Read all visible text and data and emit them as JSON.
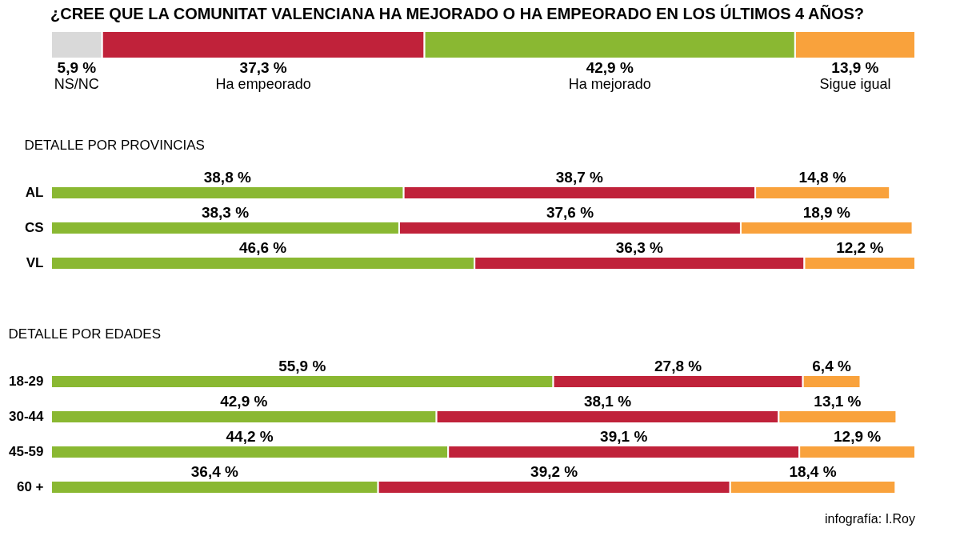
{
  "chart_data": [
    {
      "type": "bar",
      "orientation": "horizontal",
      "stacked": true,
      "title": "¿CREE QUE LA COMUNITAT VALENCIANA HA MEJORADO O HA EMPEORADO EN LOS ÚLTIMOS 4 AÑOS?",
      "categories": [
        null
      ],
      "series": [
        {
          "name": "NS/NC",
          "color": "#d9d9d9",
          "values": [
            5.9
          ],
          "value_labels": [
            "5,9 %"
          ]
        },
        {
          "name": "Ha empeorado",
          "color": "#c0223a",
          "values": [
            37.3
          ],
          "value_labels": [
            "37,3 %"
          ]
        },
        {
          "name": "Ha mejorado",
          "color": "#8ab832",
          "values": [
            42.9
          ],
          "value_labels": [
            "42,9 %"
          ]
        },
        {
          "name": "Sigue igual",
          "color": "#f9a23c",
          "values": [
            13.9
          ],
          "value_labels": [
            "13,9 %"
          ]
        }
      ]
    },
    {
      "type": "bar",
      "orientation": "horizontal",
      "stacked": true,
      "title": "DETALLE POR PROVINCIAS",
      "categories": [
        "AL",
        "CS",
        "VL"
      ],
      "tick_labels": "y",
      "series": [
        {
          "color": "#8ab832",
          "values": [
            38.8,
            38.3,
            46.6
          ],
          "value_labels": [
            "38,8 %",
            "38,3 %",
            "46,6 %"
          ]
        },
        {
          "color": "#c0223a",
          "values": [
            38.7,
            37.6,
            36.3
          ],
          "value_labels": [
            "38,7 %",
            "37,6 %",
            "36,3 %"
          ]
        },
        {
          "color": "#f9a23c",
          "values": [
            14.8,
            18.9,
            12.2
          ],
          "value_labels": [
            "14,8 %",
            "18,9 %",
            "12,2 %"
          ]
        }
      ]
    },
    {
      "type": "bar",
      "orientation": "horizontal",
      "stacked": true,
      "title": "DETALLE POR EDADES",
      "categories": [
        "18-29",
        "30-44",
        "45-59",
        "60 +"
      ],
      "tick_labels": "y",
      "annotations": [
        "infografía: I.Roy"
      ],
      "series": [
        {
          "color": "#8ab832",
          "values": [
            55.9,
            42.9,
            44.2,
            36.4
          ],
          "value_labels": [
            "55,9 %",
            "42,9 %",
            "44,2 %",
            "36,4 %"
          ]
        },
        {
          "color": "#c0223a",
          "values": [
            27.8,
            38.1,
            39.1,
            39.2
          ],
          "value_labels": [
            "27,8 %",
            "38,1 %",
            "39,1 %",
            "39,2 %"
          ]
        },
        {
          "color": "#f9a23c",
          "values": [
            6.4,
            13.1,
            12.9,
            18.4
          ],
          "value_labels": [
            "6,4 %",
            "13,1 %",
            "12,9 %",
            "18,4 %"
          ]
        }
      ]
    }
  ]
}
